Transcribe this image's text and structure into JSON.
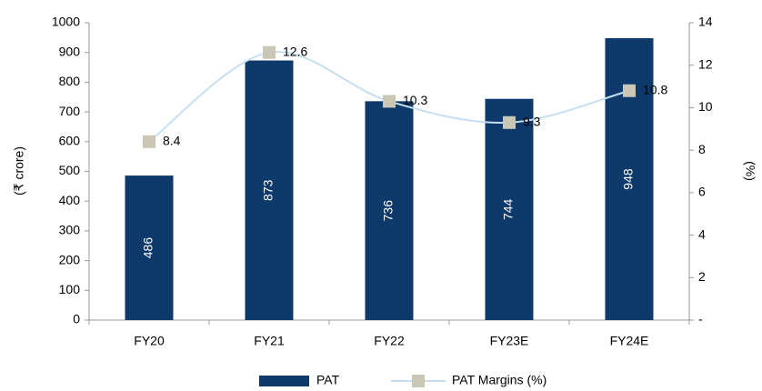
{
  "chart_data": {
    "type": "bar_line",
    "categories": [
      "FY20",
      "FY21",
      "FY22",
      "FY23E",
      "FY24E"
    ],
    "series": [
      {
        "name": "PAT",
        "color": "#0e3a6b",
        "values": [
          486,
          873,
          736,
          744,
          948
        ]
      },
      {
        "name": "PAT Margins (%)",
        "color": "#c5dff0",
        "marker_color": "#cbc7b7",
        "axis": "y2",
        "values": [
          8.4,
          12.6,
          10.3,
          9.3,
          10.8
        ]
      }
    ],
    "ylabel": "(₹ crore)",
    "y2label": "(%)",
    "ylim": [
      0,
      1000
    ],
    "yticks": [
      0,
      100,
      200,
      300,
      400,
      500,
      600,
      700,
      800,
      900,
      1000
    ],
    "y2lim": [
      0,
      14
    ],
    "y2ticks": [
      {
        "value": 0,
        "label": "-"
      },
      2,
      4,
      6,
      8,
      10,
      12,
      14
    ],
    "legend": "bottom"
  }
}
